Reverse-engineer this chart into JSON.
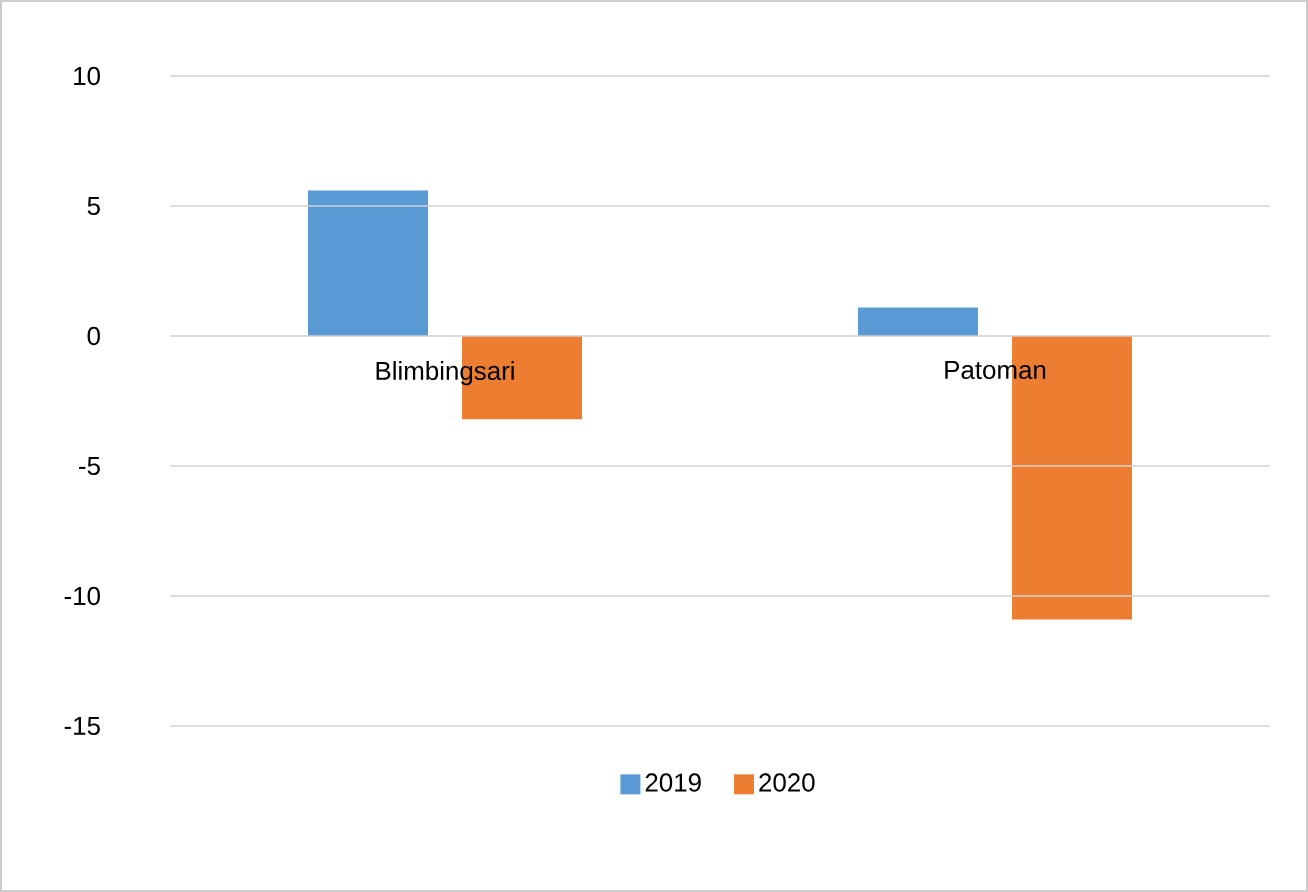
{
  "chart_data": {
    "type": "bar",
    "categories": [
      "Blimbingsari",
      "Patoman"
    ],
    "series": [
      {
        "name": "2019",
        "color": "#5b9bd5",
        "values": [
          5.6,
          1.1
        ]
      },
      {
        "name": "2020",
        "color": "#ed7d31",
        "values": [
          -3.2,
          -10.9
        ]
      }
    ],
    "ylim": [
      -15,
      10
    ],
    "yticks": [
      -15,
      -10,
      -5,
      0,
      5,
      10
    ],
    "grid": "y",
    "legend": "bottom"
  }
}
